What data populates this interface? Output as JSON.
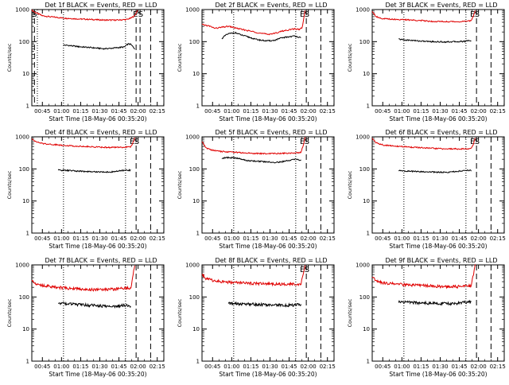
{
  "chart_data": [
    {
      "type": "line",
      "title": "Det 1f BLACK = Events, RED = LLD",
      "xlabel": "Start Time (18-May-06 00:35:20)",
      "ylabel": "Counts/sec",
      "ylim": [
        1,
        1000
      ],
      "yscale": "log",
      "yticks": [
        "1",
        "10",
        "100",
        "1000"
      ],
      "xticks": [
        "00:45",
        "01:00",
        "01:15",
        "01:30",
        "01:45",
        "02:00",
        "02:15"
      ],
      "xlim": [
        0,
        100
      ],
      "markers": {
        "dotted": [
          4.2,
          24,
          71
        ],
        "dashed": [
          2.0,
          79,
          82,
          90
        ]
      },
      "event_labels": [
        {
          "text": "S",
          "x": 2.0
        },
        {
          "text": "E",
          "x": 78.5
        },
        {
          "text": "S",
          "x": 82.5
        }
      ],
      "series": [
        {
          "name": "RED = LLD",
          "color": "#e00000",
          "x": [
            0,
            3,
            8,
            15,
            25,
            35,
            45,
            55,
            65,
            72,
            75,
            78,
            80
          ],
          "y": [
            950,
            800,
            640,
            590,
            540,
            510,
            490,
            470,
            470,
            490,
            540,
            650,
            950
          ]
        },
        {
          "name": "BLACK = Events",
          "color": "#000000",
          "x": [
            24,
            28,
            35,
            45,
            55,
            60,
            65,
            70,
            73,
            75,
            78
          ],
          "y": [
            78,
            76,
            70,
            65,
            60,
            62,
            65,
            68,
            85,
            82,
            60
          ]
        }
      ]
    },
    {
      "type": "line",
      "title": "Det 2f BLACK = Events, RED = LLD",
      "xlabel": "Start Time (18-May-06 00:35:20)",
      "ylabel": "Counts/sec",
      "ylim": [
        1,
        1000
      ],
      "yscale": "log",
      "yticks": [
        "1",
        "10",
        "100",
        "1000"
      ],
      "xticks": [
        "00:45",
        "01:00",
        "01:15",
        "01:30",
        "01:45",
        "02:00",
        "02:15"
      ],
      "xlim": [
        0,
        100
      ],
      "markers": {
        "dotted": [
          24,
          71
        ],
        "dashed": [
          79,
          90
        ]
      },
      "event_labels": [
        {
          "text": "E",
          "x": 76
        },
        {
          "text": "S",
          "x": 79.5
        }
      ],
      "series": [
        {
          "name": "RED = LLD",
          "color": "#e00000",
          "x": [
            0,
            5,
            10,
            15,
            20,
            25,
            30,
            35,
            40,
            45,
            50,
            55,
            60,
            65,
            70,
            74,
            76,
            78
          ],
          "y": [
            340,
            310,
            260,
            280,
            300,
            270,
            240,
            220,
            200,
            180,
            170,
            180,
            210,
            230,
            250,
            240,
            280,
            900
          ]
        },
        {
          "name": "BLACK = Events",
          "color": "#000000",
          "x": [
            15,
            18,
            20,
            25,
            30,
            35,
            40,
            45,
            50,
            55,
            60,
            65,
            70,
            72,
            75
          ],
          "y": [
            125,
            160,
            175,
            190,
            160,
            140,
            120,
            110,
            105,
            110,
            130,
            140,
            150,
            145,
            130
          ]
        }
      ]
    },
    {
      "type": "line",
      "title": "Det 3f BLACK = Events, RED = LLD",
      "xlabel": "Start Time (18-May-06 00:35:20)",
      "ylabel": "Counts/sec",
      "ylim": [
        1,
        1000
      ],
      "yscale": "log",
      "yticks": [
        "1",
        "10",
        "100",
        "1000"
      ],
      "xticks": [
        "00:45",
        "01:00",
        "01:15",
        "01:30",
        "01:45",
        "02:00",
        "02:15"
      ],
      "xlim": [
        0,
        100
      ],
      "markers": {
        "dotted": [
          24,
          71
        ],
        "dashed": [
          79,
          90
        ]
      },
      "event_labels": [
        {
          "text": "E",
          "x": 76
        },
        {
          "text": "S",
          "x": 79.5
        }
      ],
      "series": [
        {
          "name": "RED = LLD",
          "color": "#e00000",
          "x": [
            0,
            3,
            8,
            15,
            25,
            35,
            45,
            55,
            65,
            72,
            75,
            77,
            78
          ],
          "y": [
            900,
            600,
            520,
            500,
            480,
            460,
            430,
            420,
            420,
            430,
            450,
            700,
            950
          ]
        },
        {
          "name": "BLACK = Events",
          "color": "#000000",
          "x": [
            20,
            25,
            30,
            35,
            45,
            55,
            65,
            70,
            73,
            75
          ],
          "y": [
            120,
            112,
            110,
            105,
            100,
            98,
            100,
            102,
            110,
            105
          ]
        }
      ]
    },
    {
      "type": "line",
      "title": "Det 4f BLACK = Events, RED = LLD",
      "xlabel": "Start Time (18-May-06 00:35:20)",
      "ylabel": "Counts/sec",
      "ylim": [
        1,
        1000
      ],
      "yscale": "log",
      "yticks": [
        "1",
        "10",
        "100",
        "1000"
      ],
      "xticks": [
        "00:45",
        "01:00",
        "01:15",
        "01:30",
        "01:45",
        "02:00",
        "02:15"
      ],
      "xlim": [
        0,
        100
      ],
      "markers": {
        "dotted": [
          24,
          71
        ],
        "dashed": [
          79,
          90
        ]
      },
      "event_labels": [
        {
          "text": "E",
          "x": 76
        },
        {
          "text": "S",
          "x": 79.5
        }
      ],
      "series": [
        {
          "name": "RED = LLD",
          "color": "#e00000",
          "x": [
            0,
            3,
            8,
            15,
            25,
            35,
            45,
            55,
            65,
            72,
            75,
            77,
            78
          ],
          "y": [
            900,
            700,
            620,
            580,
            540,
            510,
            490,
            470,
            470,
            480,
            490,
            700,
            950
          ]
        },
        {
          "name": "BLACK = Events",
          "color": "#000000",
          "x": [
            20,
            25,
            30,
            35,
            45,
            55,
            60,
            65,
            70,
            73,
            75
          ],
          "y": [
            92,
            90,
            88,
            85,
            82,
            80,
            80,
            85,
            90,
            92,
            90
          ]
        }
      ]
    },
    {
      "type": "line",
      "title": "Det 5f BLACK = Events, RED = LLD",
      "xlabel": "Start Time (18-May-06 00:35:20)",
      "ylabel": "Counts/sec",
      "ylim": [
        1,
        1000
      ],
      "yscale": "log",
      "yticks": [
        "1",
        "10",
        "100",
        "1000"
      ],
      "xticks": [
        "00:45",
        "01:00",
        "01:15",
        "01:30",
        "01:45",
        "02:00",
        "02:15"
      ],
      "xlim": [
        0,
        100
      ],
      "markers": {
        "dotted": [
          24,
          71
        ],
        "dashed": [
          79,
          90
        ]
      },
      "event_labels": [
        {
          "text": "E",
          "x": 76
        },
        {
          "text": "S",
          "x": 79.5
        }
      ],
      "series": [
        {
          "name": "RED = LLD",
          "color": "#e00000",
          "x": [
            0,
            3,
            8,
            15,
            25,
            35,
            45,
            55,
            65,
            72,
            75,
            77,
            78
          ],
          "y": [
            700,
            450,
            380,
            350,
            330,
            310,
            300,
            300,
            310,
            320,
            330,
            600,
            950
          ]
        },
        {
          "name": "BLACK = Events",
          "color": "#000000",
          "x": [
            15,
            20,
            25,
            30,
            35,
            45,
            55,
            60,
            65,
            70,
            73,
            75
          ],
          "y": [
            215,
            225,
            220,
            200,
            180,
            170,
            160,
            165,
            180,
            200,
            195,
            185
          ]
        }
      ]
    },
    {
      "type": "line",
      "title": "Det 6f BLACK = Events, RED = LLD",
      "xlabel": "Start Time (18-May-06 00:35:20)",
      "ylabel": "Counts/sec",
      "ylim": [
        1,
        1000
      ],
      "yscale": "log",
      "yticks": [
        "1",
        "10",
        "100",
        "1000"
      ],
      "xticks": [
        "00:45",
        "01:00",
        "01:15",
        "01:30",
        "01:45",
        "02:00",
        "02:15"
      ],
      "xlim": [
        0,
        100
      ],
      "markers": {
        "dotted": [
          24,
          71
        ],
        "dashed": [
          79,
          90
        ]
      },
      "event_labels": [
        {
          "text": "E",
          "x": 76
        },
        {
          "text": "S",
          "x": 79.5
        }
      ],
      "series": [
        {
          "name": "RED = LLD",
          "color": "#e00000",
          "x": [
            0,
            3,
            8,
            15,
            25,
            35,
            45,
            55,
            65,
            72,
            75,
            77,
            78
          ],
          "y": [
            900,
            650,
            560,
            520,
            490,
            460,
            440,
            420,
            420,
            420,
            430,
            650,
            950
          ]
        },
        {
          "name": "BLACK = Events",
          "color": "#000000",
          "x": [
            20,
            25,
            30,
            35,
            45,
            55,
            60,
            65,
            70,
            73,
            75
          ],
          "y": [
            88,
            86,
            84,
            82,
            80,
            78,
            80,
            85,
            88,
            90,
            88
          ]
        }
      ]
    },
    {
      "type": "line",
      "title": "Det 7f BLACK = Events, RED = LLD",
      "xlabel": "Start Time (18-May-06 00:35:20)",
      "ylabel": "Counts/sec",
      "ylim": [
        1,
        1000
      ],
      "yscale": "log",
      "yticks": [
        "1",
        "10",
        "100",
        "1000"
      ],
      "xticks": [
        "00:45",
        "01:00",
        "01:15",
        "01:30",
        "01:45",
        "02:00",
        "02:15"
      ],
      "xlim": [
        0,
        100
      ],
      "markers": {
        "dotted": [
          24,
          71
        ],
        "dashed": [
          79,
          90
        ]
      },
      "event_labels": [],
      "series": [
        {
          "name": "RED = LLD",
          "color": "#e00000",
          "x": [
            0,
            3,
            8,
            15,
            25,
            35,
            45,
            55,
            65,
            72,
            75,
            77,
            78
          ],
          "y": [
            350,
            260,
            230,
            210,
            190,
            180,
            170,
            170,
            180,
            190,
            190,
            600,
            950
          ]
        },
        {
          "name": "BLACK = Events",
          "color": "#000000",
          "x": [
            20,
            25,
            30,
            35,
            45,
            55,
            60,
            65,
            70,
            73,
            75
          ],
          "y": [
            65,
            62,
            60,
            58,
            55,
            52,
            50,
            52,
            55,
            56,
            52
          ]
        }
      ]
    },
    {
      "type": "line",
      "title": "Det 8f BLACK = Events, RED = LLD",
      "xlabel": "Start Time (18-May-06 00:35:20)",
      "ylabel": "Counts/sec",
      "ylim": [
        1,
        1000
      ],
      "yscale": "log",
      "yticks": [
        "1",
        "10",
        "100",
        "1000"
      ],
      "xticks": [
        "00:45",
        "01:00",
        "01:15",
        "01:30",
        "01:45",
        "02:00",
        "02:15"
      ],
      "xlim": [
        0,
        100
      ],
      "markers": {
        "dotted": [
          24,
          71
        ],
        "dashed": [
          79,
          90
        ]
      },
      "event_labels": [
        {
          "text": "E",
          "x": 76
        },
        {
          "text": "S",
          "x": 79.5
        }
      ],
      "series": [
        {
          "name": "RED = LLD",
          "color": "#e00000",
          "x": [
            0,
            3,
            8,
            15,
            25,
            35,
            45,
            55,
            65,
            72,
            75,
            77,
            78
          ],
          "y": [
            500,
            380,
            330,
            300,
            280,
            270,
            260,
            250,
            250,
            250,
            260,
            600,
            950
          ]
        },
        {
          "name": "BLACK = Events",
          "color": "#000000",
          "x": [
            20,
            25,
            30,
            35,
            45,
            55,
            60,
            65,
            70,
            73,
            75
          ],
          "y": [
            62,
            62,
            60,
            60,
            58,
            56,
            55,
            55,
            56,
            58,
            56
          ]
        }
      ]
    },
    {
      "type": "line",
      "title": "Det 9f BLACK = Events, RED = LLD",
      "xlabel": "Start Time (18-May-06 00:35:20)",
      "ylabel": "Counts/sec",
      "ylim": [
        1,
        1000
      ],
      "yscale": "log",
      "yticks": [
        "1",
        "10",
        "100",
        "1000"
      ],
      "xticks": [
        "00:45",
        "01:00",
        "01:15",
        "01:30",
        "01:45",
        "02:00",
        "02:15"
      ],
      "xlim": [
        0,
        100
      ],
      "markers": {
        "dotted": [
          24,
          71
        ],
        "dashed": [
          79,
          90
        ]
      },
      "event_labels": [],
      "series": [
        {
          "name": "RED = LLD",
          "color": "#e00000",
          "x": [
            0,
            3,
            8,
            15,
            25,
            35,
            45,
            55,
            65,
            72,
            75,
            77,
            78
          ],
          "y": [
            450,
            320,
            280,
            260,
            240,
            230,
            220,
            210,
            210,
            220,
            230,
            600,
            950
          ]
        },
        {
          "name": "BLACK = Events",
          "color": "#000000",
          "x": [
            20,
            25,
            30,
            35,
            45,
            55,
            60,
            65,
            70,
            73,
            75
          ],
          "y": [
            72,
            70,
            68,
            66,
            64,
            62,
            62,
            64,
            68,
            70,
            68
          ]
        }
      ]
    }
  ]
}
